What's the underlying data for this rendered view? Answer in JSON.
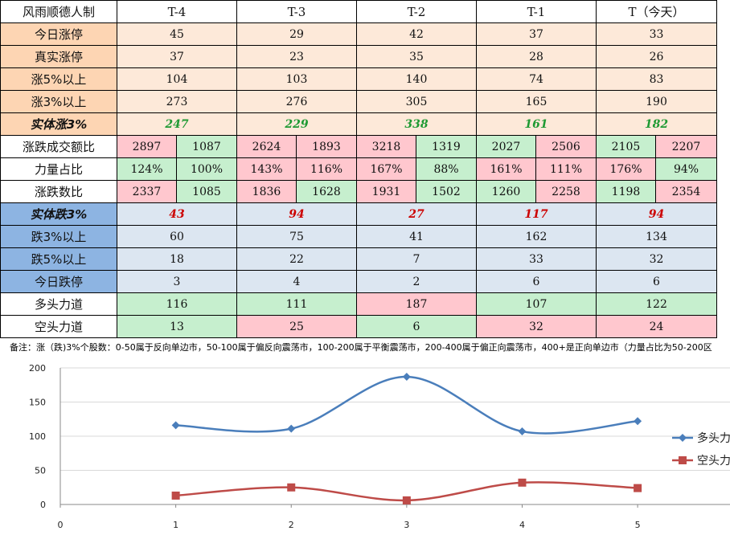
{
  "table": {
    "corner": "风雨顺德人制",
    "days": [
      "T-4",
      "T-3",
      "T-2",
      "T-1",
      "T（今天）"
    ],
    "rows": {
      "zt": {
        "label": "今日涨停",
        "values": [
          "45",
          "29",
          "42",
          "37",
          "33"
        ]
      },
      "zszt": {
        "label": "真实涨停",
        "values": [
          "37",
          "23",
          "35",
          "28",
          "26"
        ]
      },
      "z5": {
        "label": "涨5%以上",
        "values": [
          "104",
          "103",
          "140",
          "74",
          "83"
        ]
      },
      "z3": {
        "label": "涨3%以上",
        "values": [
          "273",
          "276",
          "305",
          "165",
          "190"
        ]
      },
      "stz3": {
        "label": "实体涨3%",
        "values": [
          "247",
          "229",
          "338",
          "161",
          "182"
        ]
      },
      "cje": {
        "label": "涨跌成交额比",
        "pairs": [
          [
            "2897",
            "1087"
          ],
          [
            "2624",
            "1893"
          ],
          [
            "3218",
            "1319"
          ],
          [
            "2027",
            "2506"
          ],
          [
            "2105",
            "2207"
          ]
        ]
      },
      "lzb": {
        "label": "力量占比",
        "pairs": [
          [
            "124%",
            "100%"
          ],
          [
            "143%",
            "116%"
          ],
          [
            "167%",
            "88%"
          ],
          [
            "161%",
            "111%"
          ],
          [
            "176%",
            "94%"
          ]
        ]
      },
      "zds": {
        "label": "涨跌数比",
        "pairs": [
          [
            "2337",
            "1085"
          ],
          [
            "1836",
            "1628"
          ],
          [
            "1931",
            "1502"
          ],
          [
            "1260",
            "2258"
          ],
          [
            "1198",
            "2354"
          ]
        ]
      },
      "std3": {
        "label": "实体跌3%",
        "values": [
          "43",
          "94",
          "27",
          "117",
          "94"
        ]
      },
      "d3": {
        "label": "跌3%以上",
        "values": [
          "60",
          "75",
          "41",
          "162",
          "134"
        ]
      },
      "d5": {
        "label": "跌5%以上",
        "values": [
          "18",
          "22",
          "7",
          "33",
          "32"
        ]
      },
      "dt": {
        "label": "今日跌停",
        "values": [
          "3",
          "4",
          "2",
          "6",
          "6"
        ]
      },
      "dtld": {
        "label": "多头力道",
        "values": [
          "116",
          "111",
          "187",
          "107",
          "122"
        ]
      },
      "ktld": {
        "label": "空头力道",
        "values": [
          "13",
          "25",
          "6",
          "32",
          "24"
        ]
      }
    }
  },
  "note": "备注：涨（跌)3%个股数：0-50属于反向单边市，50-100属于偏反向震荡市，100-200属于平衡震荡市，200-400属于偏正向震荡市，400+是正向单边市（力量占比为50-200区",
  "chart_data": {
    "type": "line",
    "x": [
      1,
      2,
      3,
      4,
      5
    ],
    "xticks": [
      "0",
      "1",
      "2",
      "3",
      "4",
      "5"
    ],
    "yticks": [
      "0",
      "50",
      "100",
      "150",
      "200"
    ],
    "xlim": [
      0,
      5.8
    ],
    "ylim": [
      0,
      200
    ],
    "series": [
      {
        "name": "多头力道",
        "values": [
          116,
          111,
          187,
          107,
          122
        ],
        "color": "#4a7ebb",
        "marker": "diamond"
      },
      {
        "name": "空头力道",
        "values": [
          13,
          25,
          6,
          32,
          24
        ],
        "color": "#be4b48",
        "marker": "square"
      }
    ],
    "legend_position": "right"
  }
}
